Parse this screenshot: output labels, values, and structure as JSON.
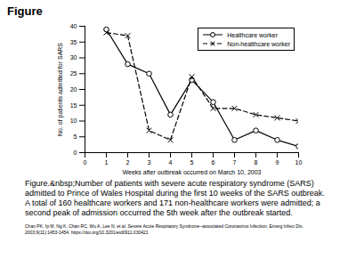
{
  "heading": "Figure",
  "caption": "Figure.&nbsp;Number of patients with severe acute respiratory syndrome (SARS) admitted to Prince of Wales Hospital during the first 10 weeks of the SARS outbreak. A total of 160 healthcare workers and 171 non-healthcare workers were admitted; a second peak of admission occurred the 5th week after the outbreak started.",
  "citation": "Chan PK, Ip M, Ng K, Chan RC, Wu A, Lee N, et al. Severe Acute Respiratory Syndrome–associated Coronavirus Infection. Emerg Infect Dis. 2003;9(11):1453-1454. https://doi.org/10.3201/eid0911.030421",
  "chart_data": {
    "type": "line",
    "x_label": "Weeks after outbreak occurred on March 10, 2003",
    "y_label": "No. of patients admitted for SARS",
    "x": [
      1,
      2,
      3,
      4,
      5,
      6,
      7,
      8,
      9,
      10
    ],
    "series": [
      {
        "name": "Healthcare worker",
        "color": "#000000",
        "marker": "circle",
        "line_style": "solid",
        "values": [
          39,
          28,
          25,
          12,
          23,
          16,
          4,
          7,
          4,
          2
        ]
      },
      {
        "name": "Non-healthcare worker",
        "color": "#000000",
        "marker": "x",
        "line_style": "dashed",
        "values": [
          38,
          37,
          7,
          4,
          24,
          14,
          14,
          12,
          11,
          10
        ]
      }
    ],
    "xlim": [
      0,
      10
    ],
    "xticks": [
      0,
      1,
      2,
      3,
      4,
      5,
      6,
      7,
      8,
      9,
      10
    ],
    "ylim": [
      0,
      40
    ],
    "yticks": [
      0,
      5,
      10,
      15,
      20,
      25,
      30,
      35,
      40
    ],
    "grid": false,
    "legend": "upper right"
  }
}
